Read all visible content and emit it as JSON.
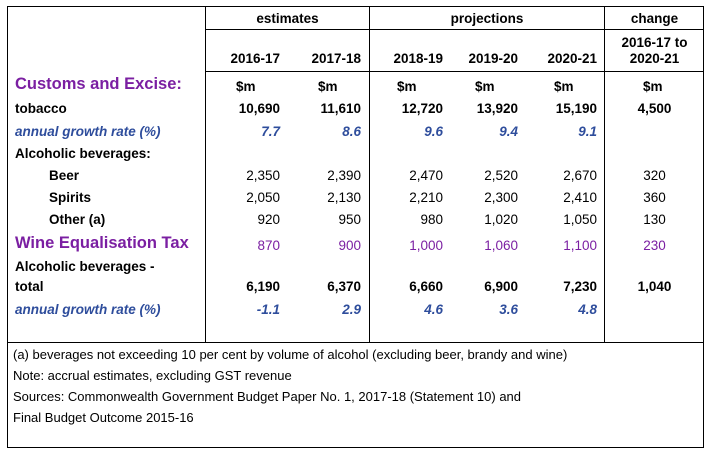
{
  "header": {
    "groups": [
      {
        "label": "estimates"
      },
      {
        "label": "projections"
      },
      {
        "label": "change"
      }
    ],
    "years": [
      "2016-17",
      "2017-18",
      "2018-19",
      "2019-20",
      "2020-21"
    ],
    "change_label_line1": "2016-17 to",
    "change_label_line2": "2020-21"
  },
  "units": [
    "$m",
    "$m",
    "$m",
    "$m",
    "$m",
    "$m"
  ],
  "rows": {
    "customs": {
      "label": "Customs and Excise:"
    },
    "tobacco": {
      "label": "tobacco",
      "values": [
        "10,690",
        "11,610",
        "12,720",
        "13,920",
        "15,190",
        "4,500"
      ]
    },
    "tobacco_growth": {
      "label": "annual growth rate (%)",
      "values": [
        "7.7",
        "8.6",
        "9.6",
        "9.4",
        "9.1"
      ]
    },
    "alcoholic": {
      "label": "Alcoholic beverages:"
    },
    "beer": {
      "label": "Beer",
      "values": [
        "2,350",
        "2,390",
        "2,470",
        "2,520",
        "2,670",
        "320"
      ]
    },
    "spirits": {
      "label": "Spirits",
      "values": [
        "2,050",
        "2,130",
        "2,210",
        "2,300",
        "2,410",
        "360"
      ]
    },
    "other": {
      "label": "Other (a)",
      "values": [
        "920",
        "950",
        "980",
        "1,020",
        "1,050",
        "130"
      ]
    },
    "wet": {
      "label": "Wine Equalisation Tax",
      "values": [
        "870",
        "900",
        "1,000",
        "1,060",
        "1,100",
        "230"
      ]
    },
    "total": {
      "label_line1": "Alcoholic beverages -",
      "label_line2": "total",
      "values": [
        "6,190",
        "6,370",
        "6,660",
        "6,900",
        "7,230",
        "1,040"
      ]
    },
    "total_growth": {
      "label": "annual growth rate (%)",
      "values": [
        "-1.1",
        "2.9",
        "4.6",
        "3.6",
        "4.8"
      ]
    }
  },
  "notes": [
    "(a) beverages not exceeding 10 per cent by volume of alcohol (excluding beer, brandy and wine)",
    "Note: accrual estimates, excluding GST revenue",
    "Sources: Commonwealth Government Budget Paper No. 1, 2017-18 (Statement 10) and",
    "Final Budget Outcome 2015-16"
  ],
  "colors": {
    "purple": "#7B1FA2",
    "blue": "#2E4D9C"
  }
}
